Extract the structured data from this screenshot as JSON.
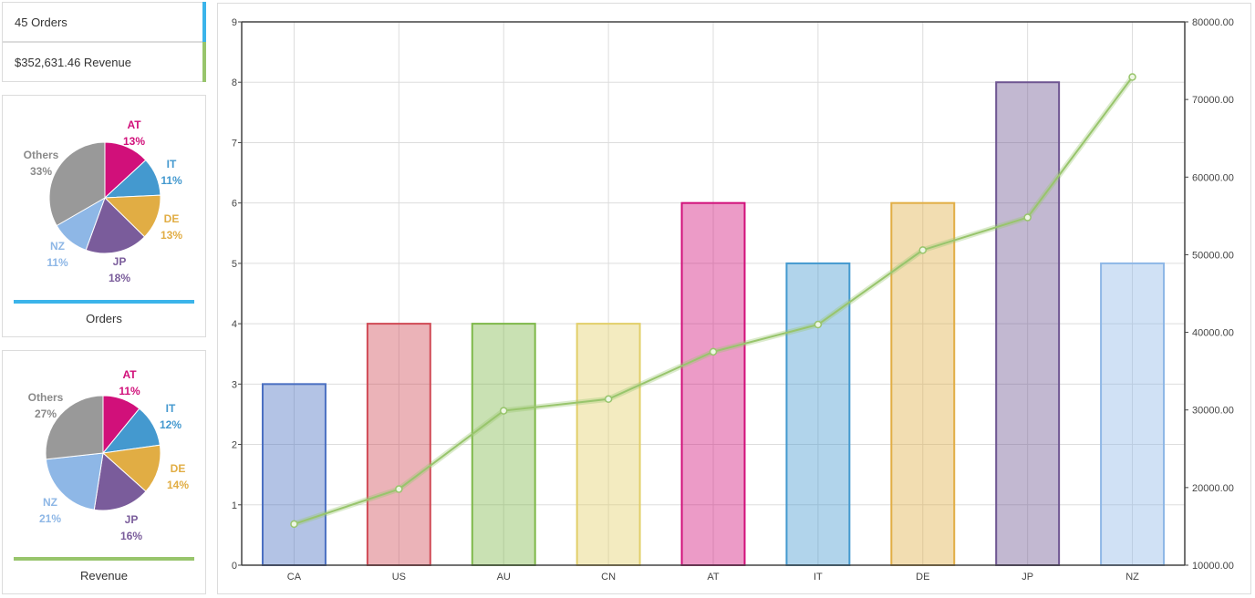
{
  "kpis": {
    "orders_text": "45 Orders",
    "orders_color": "#3bb4ea",
    "revenue_text": "$352,631.46 Revenue",
    "revenue_color": "#98c56c"
  },
  "orders_panel": {
    "caption": "Orders",
    "underline_color": "#3bb4ea",
    "slices": [
      {
        "label": "AT",
        "pct": "13%",
        "value": 13,
        "color": "#d1107a"
      },
      {
        "label": "IT",
        "pct": "11%",
        "value": 11,
        "color": "#4499cf"
      },
      {
        "label": "DE",
        "pct": "13%",
        "value": 13,
        "color": "#e1ad44"
      },
      {
        "label": "JP",
        "pct": "18%",
        "value": 18,
        "color": "#7a5c9b"
      },
      {
        "label": "NZ",
        "pct": "11%",
        "value": 11,
        "color": "#8eb7e6"
      },
      {
        "label": "Others",
        "pct": "33%",
        "value": 33,
        "color": "#999999"
      }
    ]
  },
  "revenue_panel": {
    "caption": "Revenue",
    "underline_color": "#98c56c",
    "slices": [
      {
        "label": "AT",
        "pct": "11%",
        "value": 11,
        "color": "#d1107a"
      },
      {
        "label": "IT",
        "pct": "12%",
        "value": 12,
        "color": "#4499cf"
      },
      {
        "label": "DE",
        "pct": "14%",
        "value": 14,
        "color": "#e1ad44"
      },
      {
        "label": "JP",
        "pct": "16%",
        "value": 16,
        "color": "#7a5c9b"
      },
      {
        "label": "NZ",
        "pct": "21%",
        "value": 21,
        "color": "#8eb7e6"
      },
      {
        "label": "Others",
        "pct": "27%",
        "value": 27,
        "color": "#999999"
      }
    ]
  },
  "chart_data": {
    "type": "bar",
    "categories": [
      "CA",
      "US",
      "AU",
      "CN",
      "AT",
      "IT",
      "DE",
      "JP",
      "NZ"
    ],
    "series": [
      {
        "type": "bar",
        "axis": "left",
        "values": [
          3,
          4,
          4,
          4,
          6,
          5,
          6,
          8,
          5
        ],
        "colors": [
          "#4a6fc1",
          "#d04a55",
          "#7fb84a",
          "#e2cf6a",
          "#d1107a",
          "#4499cf",
          "#e1ad44",
          "#6e5591",
          "#8eb7e6"
        ]
      },
      {
        "type": "line",
        "axis": "right",
        "color": "#98c56c",
        "values": [
          15300,
          19800,
          29900,
          31400,
          37500,
          41000,
          50600,
          54800,
          72900
        ]
      }
    ],
    "ylim_left": [
      0,
      9
    ],
    "yticks_left": [
      "0",
      "1",
      "2",
      "3",
      "4",
      "5",
      "6",
      "7",
      "8",
      "9"
    ],
    "ylim_right": [
      10000,
      80000
    ],
    "yticks_right": [
      "10000.00",
      "20000.00",
      "30000.00",
      "40000.00",
      "50000.00",
      "60000.00",
      "70000.00",
      "80000.00"
    ],
    "grid": true
  }
}
